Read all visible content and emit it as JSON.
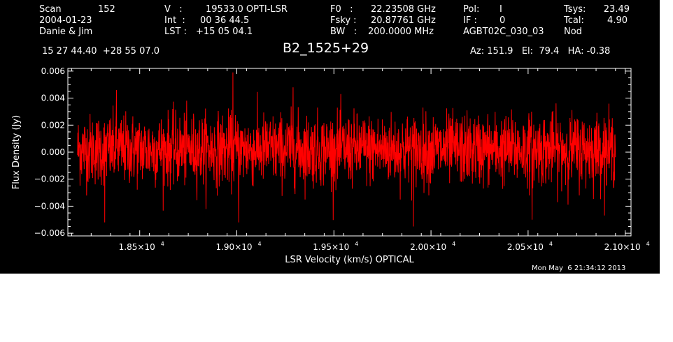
{
  "header": {
    "col1": {
      "scan_label": "Scan",
      "scan_value": "152",
      "date": "2004-01-23",
      "observers": "Danie & Jim",
      "coords": "15 27 44.40  +28 55 07.0"
    },
    "col2": {
      "v_label": "V   :",
      "v_value": "19533.0 OPTI-LSR",
      "int_label": "Int  :",
      "int_value": "00 36 44.5",
      "lst_label": "LST :",
      "lst_value": "+15 05 04.1"
    },
    "col3": {
      "f0_label": "F0   :",
      "f0_value": "22.23508 GHz",
      "fsky_label": "Fsky :",
      "fsky_value": "20.87761 GHz",
      "bw_label": "BW   :",
      "bw_value": "200.0000 MHz"
    },
    "col4": {
      "pol_label": "Pol:",
      "pol_value": "I",
      "if_label": "IF :",
      "if_value": "0",
      "project": "AGBT02C_030_03"
    },
    "col5": {
      "tsys_label": "Tsys:",
      "tsys_value": "23.49",
      "tcal_label": "Tcal:",
      "tcal_value": "4.90",
      "mode": "Nod"
    },
    "az_el_ha": "Az: 151.9   El:  79.4   HA: -0.38"
  },
  "timestamp": "Mon May  6 21:34:12 2013",
  "colors": {
    "background": "#000000",
    "spectrum": "#ff0000",
    "axes": "#ffffff"
  },
  "chart_data": {
    "type": "line",
    "title": "B2_1525+29",
    "xlabel": "LSR Velocity (km/s) OPTICAL",
    "ylabel": "Flux Density (Jy)",
    "xlim": [
      18130,
      21030
    ],
    "ylim": [
      -0.0062,
      0.0062
    ],
    "x_range_data": [
      18180,
      20950
    ],
    "x_ticks": [
      18500,
      19000,
      19500,
      20000,
      20500,
      21000
    ],
    "x_tick_labels": [
      {
        "mantissa": "1.85×10",
        "exp": "4"
      },
      {
        "mantissa": "1.90×10",
        "exp": "4"
      },
      {
        "mantissa": "1.95×10",
        "exp": "4"
      },
      {
        "mantissa": "2.00×10",
        "exp": "4"
      },
      {
        "mantissa": "2.05×10",
        "exp": "4"
      },
      {
        "mantissa": "2.10×10",
        "exp": "4"
      }
    ],
    "y_ticks": [
      -0.006,
      -0.004,
      -0.002,
      0.0,
      0.002,
      0.004,
      0.006
    ],
    "y_tick_labels": [
      "−0.006",
      "−0.004",
      "−0.002",
      "0.000",
      "0.002",
      "0.004",
      "0.006"
    ],
    "series": [
      {
        "color": "#ff0000",
        "noise_rms": 0.0013,
        "points": 2200,
        "mean": 0.0002,
        "spikes": [
          {
            "x": 18980,
            "y": 0.0059
          },
          {
            "x": 19290,
            "y": 0.0048
          },
          {
            "x": 18380,
            "y": 0.0046
          },
          {
            "x": 18320,
            "y": -0.0052
          },
          {
            "x": 19010,
            "y": -0.0052
          },
          {
            "x": 19910,
            "y": -0.0055
          },
          {
            "x": 20520,
            "y": -0.005
          }
        ]
      }
    ]
  }
}
